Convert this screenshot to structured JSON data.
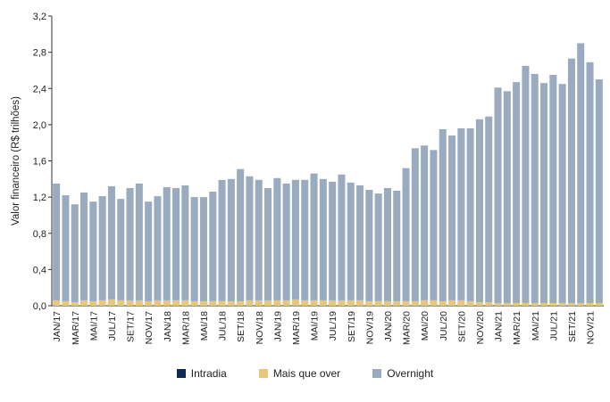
{
  "chart_data": {
    "type": "bar",
    "stacked": true,
    "ylabel": "Valor financeiro (R$ trilhões)",
    "ylim": [
      0,
      3.2
    ],
    "yticks": [
      "0,0",
      "0,4",
      "0,8",
      "1,2",
      "1,6",
      "2,0",
      "2,4",
      "2,8",
      "3,2"
    ],
    "grid": false,
    "legend_position": "bottom",
    "categories": [
      "JAN/17",
      "FEV/17",
      "MAR/17",
      "ABR/17",
      "MAI/17",
      "JUN/17",
      "JUL/17",
      "AGO/17",
      "SET/17",
      "OUT/17",
      "NOV/17",
      "DEZ/17",
      "JAN/18",
      "FEV/18",
      "MAR/18",
      "ABR/18",
      "MAI/18",
      "JUN/18",
      "JUL/18",
      "AGO/18",
      "SET/18",
      "OUT/18",
      "NOV/18",
      "DEZ/18",
      "JAN/19",
      "FEV/19",
      "MAR/19",
      "ABR/19",
      "MAI/19",
      "JUN/19",
      "JUL/19",
      "AGO/19",
      "SET/19",
      "OUT/19",
      "NOV/19",
      "DEZ/19",
      "JAN/20",
      "FEV/20",
      "MAR/20",
      "ABR/20",
      "MAI/20",
      "JUN/20",
      "JUL/20",
      "AGO/20",
      "SET/20",
      "OUT/20",
      "NOV/20",
      "DEZ/20",
      "JAN/21",
      "FEV/21",
      "MAR/21",
      "ABR/21",
      "MAI/21",
      "JUN/21",
      "JUL/21",
      "AGO/21",
      "SET/21",
      "OUT/21",
      "NOV/21",
      "DEZ/21"
    ],
    "tick_labels": [
      "JAN/17",
      "MAR/17",
      "MAI/17",
      "JUL/17",
      "SET/17",
      "NOV/17",
      "JAN/18",
      "MAR/18",
      "MAI/18",
      "JUL/18",
      "SET/18",
      "NOV/18",
      "JAN/19",
      "MAR/19",
      "MAI/19",
      "JUL/19",
      "SET/19",
      "NOV/19",
      "JAN/20",
      "MAR/20",
      "MAI/20",
      "JUL/20",
      "SET/20",
      "NOV/20",
      "JAN/21",
      "MAR/21",
      "MAI/21",
      "JUL/21",
      "SET/21",
      "NOV/21"
    ],
    "series": [
      {
        "name": "Intradia",
        "color": "#0d2a52",
        "values": [
          0,
          0,
          0,
          0,
          0,
          0,
          0,
          0,
          0,
          0,
          0,
          0,
          0,
          0,
          0,
          0,
          0,
          0,
          0,
          0,
          0,
          0,
          0,
          0,
          0,
          0,
          0,
          0,
          0,
          0,
          0,
          0,
          0,
          0,
          0,
          0,
          0,
          0,
          0,
          0,
          0,
          0,
          0,
          0,
          0,
          0,
          0,
          0,
          0,
          0,
          0,
          0,
          0,
          0,
          0,
          0,
          0,
          0,
          0,
          0
        ]
      },
      {
        "name": "Mais que over",
        "color": "#e6c77c",
        "values": [
          0.06,
          0.05,
          0.04,
          0.06,
          0.05,
          0.06,
          0.07,
          0.06,
          0.06,
          0.06,
          0.05,
          0.06,
          0.06,
          0.06,
          0.06,
          0.05,
          0.05,
          0.05,
          0.05,
          0.05,
          0.05,
          0.06,
          0.06,
          0.06,
          0.06,
          0.06,
          0.07,
          0.06,
          0.06,
          0.06,
          0.06,
          0.06,
          0.06,
          0.06,
          0.05,
          0.05,
          0.05,
          0.05,
          0.05,
          0.05,
          0.06,
          0.06,
          0.05,
          0.06,
          0.06,
          0.05,
          0.04,
          0.04,
          0.03,
          0.03,
          0.03,
          0.03,
          0.03,
          0.03,
          0.03,
          0.03,
          0.03,
          0.03,
          0.03,
          0.03
        ]
      },
      {
        "name": "Overnight",
        "color": "#9aabbf",
        "values": [
          1.29,
          1.17,
          1.08,
          1.19,
          1.1,
          1.15,
          1.25,
          1.12,
          1.24,
          1.29,
          1.1,
          1.15,
          1.25,
          1.24,
          1.27,
          1.15,
          1.15,
          1.21,
          1.34,
          1.35,
          1.46,
          1.37,
          1.33,
          1.24,
          1.35,
          1.29,
          1.32,
          1.33,
          1.4,
          1.34,
          1.31,
          1.39,
          1.3,
          1.27,
          1.23,
          1.19,
          1.25,
          1.22,
          1.47,
          1.69,
          1.71,
          1.66,
          1.9,
          1.82,
          1.9,
          1.91,
          2.02,
          2.05,
          2.38,
          2.34,
          2.44,
          2.62,
          2.53,
          2.43,
          2.52,
          2.42,
          2.7,
          2.87,
          2.66,
          2.47
        ]
      }
    ]
  }
}
